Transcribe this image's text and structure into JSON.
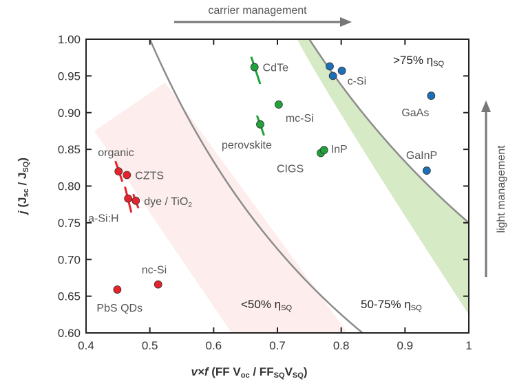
{
  "chart_data": {
    "type": "scatter",
    "xlabel": {
      "main": "v×f",
      "paren": "(FF V",
      "oc": "oc",
      "mid": " / FF",
      "sq1": "SQ",
      "v": "V",
      "sq2": "SQ",
      "close": ")"
    },
    "ylabel": {
      "main": "j",
      "paren": "(J",
      "sc": "sc",
      "mid": " / J",
      "sq": "SQ",
      "close": ")"
    },
    "xlim": [
      0.4,
      1.0
    ],
    "ylim": [
      0.6,
      1.0
    ],
    "xticks": [
      "0.4",
      "0.5",
      "0.6",
      "0.7",
      "0.8",
      "0.9",
      "1"
    ],
    "yticks": [
      "0.60",
      "0.65",
      "0.70",
      "0.75",
      "0.80",
      "0.85",
      "0.90",
      "0.95",
      "1.00"
    ],
    "grid": false,
    "curves": [
      {
        "label": "50% ηSQ",
        "product": 0.5
      },
      {
        "label": "75% ηSQ",
        "product": 0.75
      }
    ],
    "regions": [
      {
        "text": "<50% η",
        "sub": "SQ"
      },
      {
        "text": "50-75% η",
        "sub": "SQ"
      },
      {
        "text": ">75% η",
        "sub": "SQ"
      }
    ],
    "annotations": {
      "top_arrow": "carrier management",
      "right_arrow": "light management"
    },
    "colors": {
      "red": "#e8222a",
      "green": "#1fa33a",
      "blue": "#1c6fb8",
      "curve": "#8c8c8c",
      "green_band": "#d6eac6",
      "pink_band": "#fdeeed"
    },
    "series": [
      {
        "color": "red",
        "points": [
          {
            "label": "organic",
            "x": 0.451,
            "y": 0.82,
            "err": [
              [
                0.446,
                0.834
              ],
              [
                0.457,
                0.806
              ]
            ]
          },
          {
            "label": "CZTS",
            "x": 0.464,
            "y": 0.815
          },
          {
            "label": "a-Si:H",
            "x": 0.466,
            "y": 0.783,
            "err": [
              [
                0.461,
                0.799
              ],
              [
                0.471,
                0.764
              ]
            ]
          },
          {
            "label": "dye / TiO",
            "sub": "2",
            "x": 0.478,
            "y": 0.78,
            "err": [
              [
                0.474,
                0.789
              ],
              [
                0.482,
                0.77
              ]
            ]
          },
          {
            "label": "PbS QDs",
            "x": 0.449,
            "y": 0.659
          },
          {
            "label": "nc-Si",
            "x": 0.513,
            "y": 0.666
          }
        ]
      },
      {
        "color": "green",
        "points": [
          {
            "label": "CdTe",
            "x": 0.664,
            "y": 0.962,
            "err": [
              [
                0.659,
                0.976
              ],
              [
                0.673,
                0.939
              ]
            ]
          },
          {
            "label": "mc-Si",
            "x": 0.702,
            "y": 0.911
          },
          {
            "label": "perovskite",
            "x": 0.673,
            "y": 0.884,
            "err": [
              [
                0.668,
                0.896
              ],
              [
                0.679,
                0.869
              ]
            ]
          },
          {
            "label": "CIGS",
            "x": 0.768,
            "y": 0.845
          },
          {
            "label": "InP",
            "x": 0.773,
            "y": 0.849
          }
        ]
      },
      {
        "color": "blue",
        "points": [
          {
            "label": "",
            "x": 0.782,
            "y": 0.963
          },
          {
            "label": "c-Si",
            "x": 0.801,
            "y": 0.957
          },
          {
            "label": "",
            "x": 0.787,
            "y": 0.95
          },
          {
            "label": "GaAs",
            "x": 0.941,
            "y": 0.923
          },
          {
            "label": "GaInP",
            "x": 0.934,
            "y": 0.821
          }
        ]
      }
    ]
  }
}
